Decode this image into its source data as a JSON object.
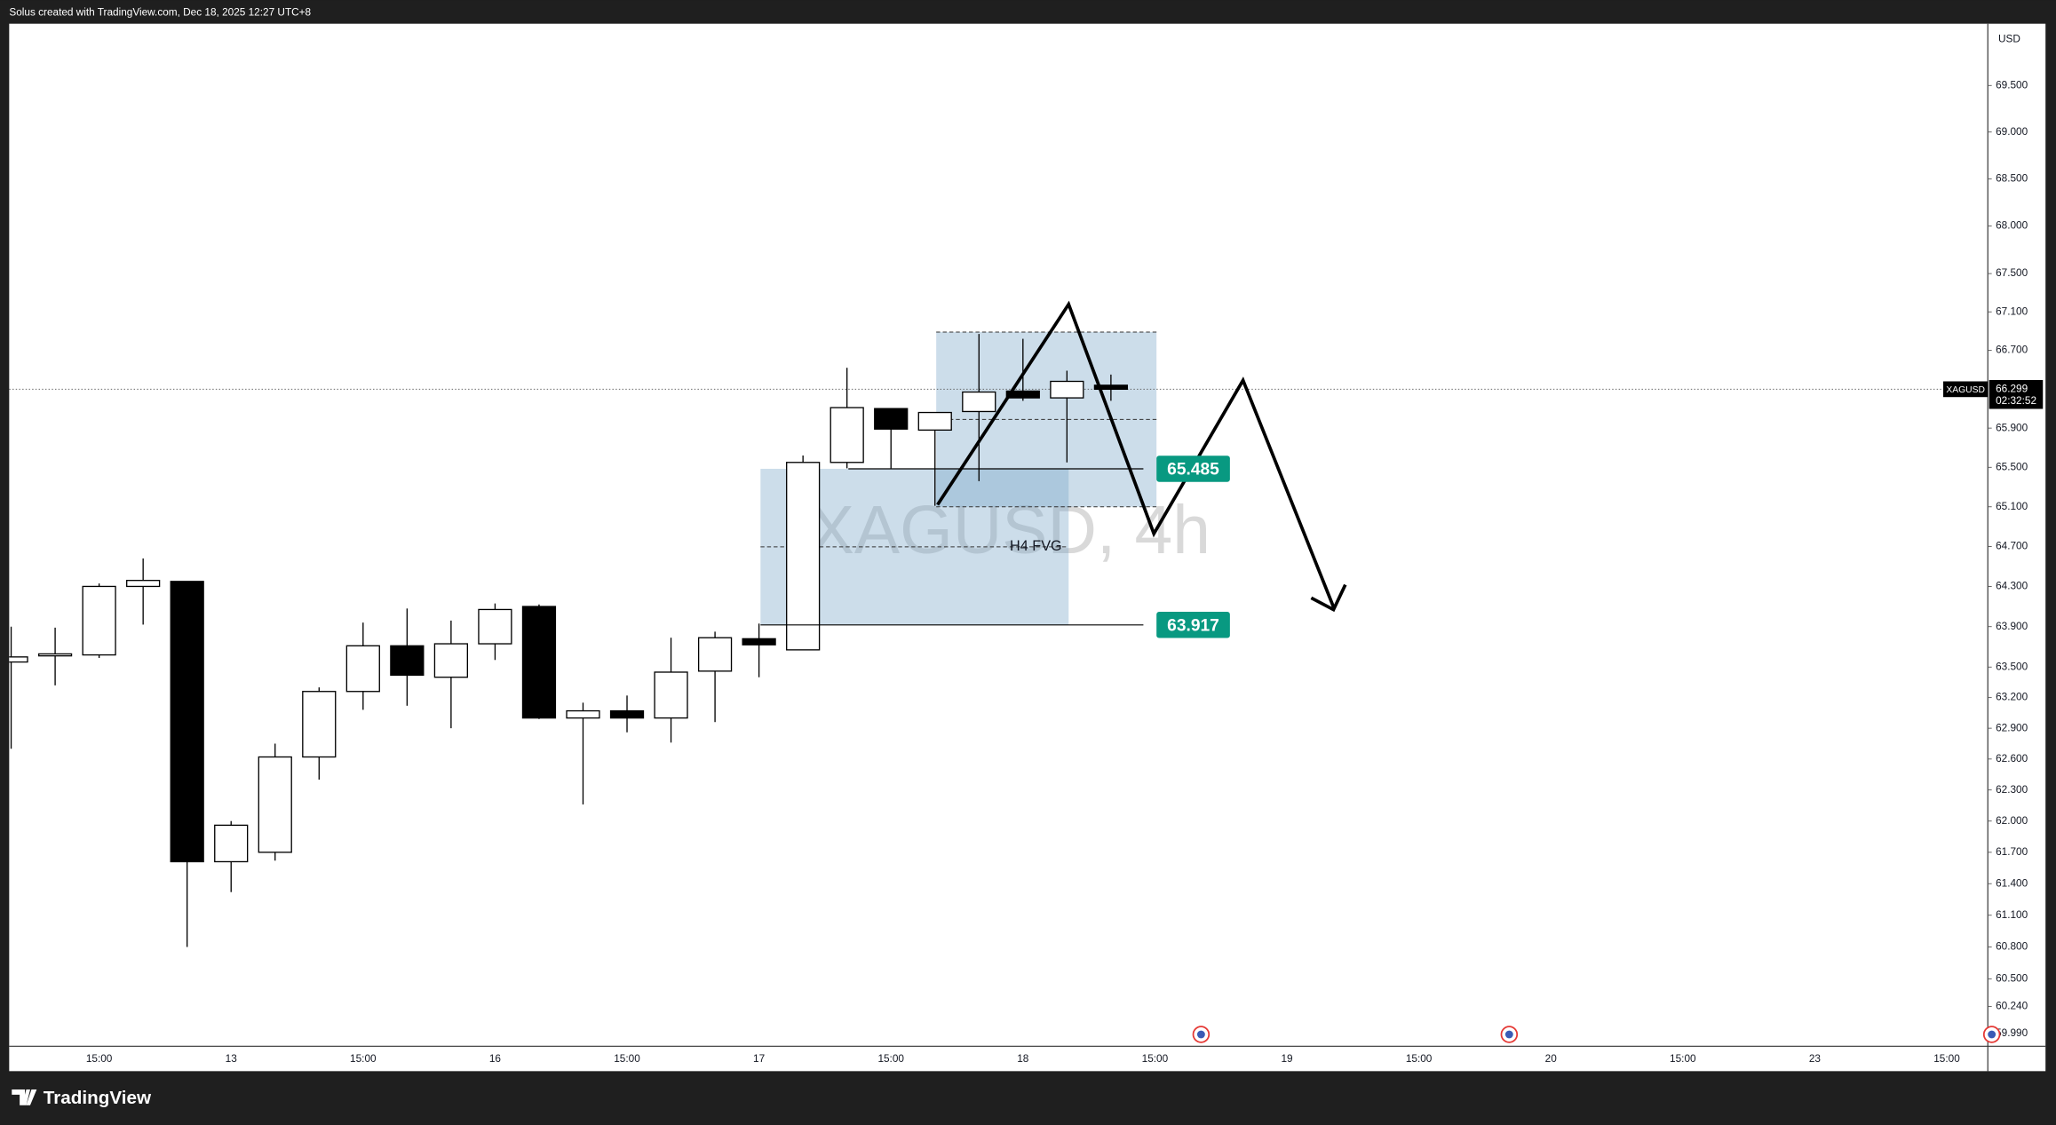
{
  "header": {
    "title": "Solus created with TradingView.com, Dec 18, 2025 12:27 UTC+8"
  },
  "chart_data": {
    "type": "candlestick",
    "title": "XAGUSD, 4h",
    "y_unit": "USD",
    "categories": [
      null,
      null,
      "15:00",
      null,
      null,
      "13",
      null,
      null,
      "15:00",
      null,
      null,
      "16",
      null,
      null,
      "15:00",
      null,
      null,
      "17",
      null,
      null,
      "15:00",
      null,
      null,
      "18",
      null,
      null,
      "15:00",
      null,
      null,
      "19",
      null,
      null,
      "15:00",
      null,
      null,
      "20",
      null,
      null,
      "15:00",
      null,
      null,
      "23",
      null,
      null,
      "15:00"
    ],
    "open": [
      63.55,
      63.62,
      63.62,
      64.3,
      64.35,
      61.61,
      61.7,
      62.62,
      63.26,
      63.71,
      63.4,
      63.73,
      64.1,
      63.0,
      63.07,
      63.0,
      63.46,
      63.78,
      63.67,
      65.55,
      66.1,
      65.88,
      66.07,
      66.28,
      66.21,
      66.34,
      null,
      null,
      null,
      null,
      null,
      null,
      null,
      null,
      null,
      null,
      null,
      null,
      null,
      null,
      null,
      null,
      null,
      null,
      null
    ],
    "high": [
      63.9,
      63.89,
      64.33,
      64.58,
      64.35,
      62.0,
      62.75,
      63.3,
      63.94,
      64.08,
      63.96,
      64.13,
      64.12,
      63.15,
      63.22,
      63.79,
      63.85,
      63.93,
      65.62,
      66.52,
      66.1,
      66.06,
      66.87,
      66.82,
      66.49,
      66.45,
      null,
      null,
      null,
      null,
      null,
      null,
      null,
      null,
      null,
      null,
      null,
      null,
      null,
      null,
      null,
      null,
      null,
      null,
      null
    ],
    "low": [
      62.7,
      63.32,
      63.59,
      63.92,
      60.8,
      61.32,
      61.62,
      62.4,
      63.08,
      63.12,
      62.9,
      63.57,
      62.99,
      62.16,
      62.86,
      62.76,
      62.96,
      63.4,
      63.67,
      65.49,
      65.49,
      65.11,
      65.36,
      66.18,
      65.55,
      66.18,
      null,
      null,
      null,
      null,
      null,
      null,
      null,
      null,
      null,
      null,
      null,
      null,
      null,
      null,
      null,
      null,
      null,
      null,
      null
    ],
    "close": [
      63.6,
      63.63,
      64.3,
      64.36,
      61.61,
      61.96,
      62.62,
      63.26,
      63.71,
      63.42,
      63.73,
      64.07,
      63.0,
      63.07,
      63.0,
      63.45,
      63.79,
      63.72,
      65.55,
      66.11,
      65.89,
      66.06,
      66.27,
      66.21,
      66.38,
      66.299,
      null,
      null,
      null,
      null,
      null,
      null,
      null,
      null,
      null,
      null,
      null,
      null,
      null,
      null,
      null,
      null,
      null,
      null,
      null
    ],
    "up_color": "#ffffff",
    "down_color": "#000000",
    "ylim": [
      59.87,
      70.17
    ],
    "log_scale": true,
    "grid": false,
    "yticks": [
      {
        "value": 69.5,
        "label": "69.500"
      },
      {
        "value": 69.0,
        "label": "69.000"
      },
      {
        "value": 68.5,
        "label": "68.500"
      },
      {
        "value": 68.0,
        "label": "68.000"
      },
      {
        "value": 67.5,
        "label": "67.500"
      },
      {
        "value": 67.1,
        "label": "67.100"
      },
      {
        "value": 66.7,
        "label": "66.700"
      },
      {
        "value": 65.9,
        "label": "65.900"
      },
      {
        "value": 65.5,
        "label": "65.500"
      },
      {
        "value": 65.1,
        "label": "65.100"
      },
      {
        "value": 64.7,
        "label": "64.700"
      },
      {
        "value": 64.3,
        "label": "64.300"
      },
      {
        "value": 63.9,
        "label": "63.900"
      },
      {
        "value": 63.5,
        "label": "63.500"
      },
      {
        "value": 63.2,
        "label": "63.200"
      },
      {
        "value": 62.9,
        "label": "62.900"
      },
      {
        "value": 62.6,
        "label": "62.600"
      },
      {
        "value": 62.3,
        "label": "62.300"
      },
      {
        "value": 62.0,
        "label": "62.000"
      },
      {
        "value": 61.7,
        "label": "61.700"
      },
      {
        "value": 61.4,
        "label": "61.400"
      },
      {
        "value": 61.1,
        "label": "61.100"
      },
      {
        "value": 60.8,
        "label": "60.800"
      },
      {
        "value": 60.5,
        "label": "60.500"
      },
      {
        "value": 60.24,
        "label": "60.240"
      },
      {
        "value": 59.99,
        "label": "59.990"
      }
    ],
    "last_price": {
      "symbol": "XAGUSD",
      "value": 66.299,
      "countdown": "02:32:52"
    },
    "price_lines": [
      65.485,
      63.917
    ],
    "zones": [
      {
        "low": 63.917,
        "high": 65.485,
        "label": "H4 FVG"
      },
      {
        "low": 65.1,
        "high": 66.89
      }
    ]
  },
  "footer": {
    "brand": "TradingView"
  }
}
